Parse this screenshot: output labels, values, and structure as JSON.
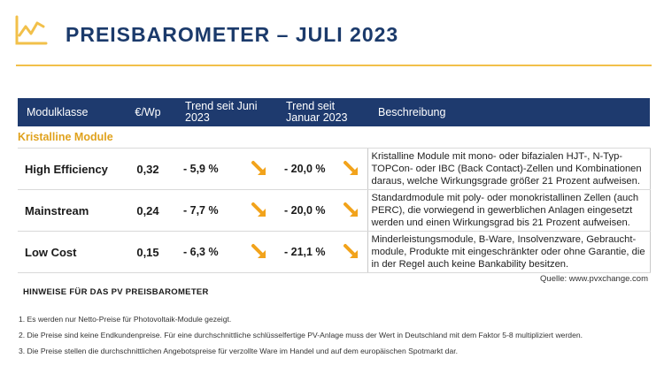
{
  "header": {
    "title": "PREISBAROMETER – JULI 2023",
    "colors": {
      "brand_blue": "#1e3a6e",
      "accent_yellow": "#f2c04a",
      "section_orange": "#e0a21d"
    },
    "logo_icon": "trend-chart-logo-icon"
  },
  "table": {
    "columns": [
      "Modulklasse",
      "€/Wp",
      "Trend seit Juni 2023",
      "Trend seit Januar 2023",
      "Beschreibung"
    ],
    "section": "Kristalline Module",
    "rows": [
      {
        "name": "High Efficiency",
        "price": "0,32",
        "trend_june": "- 5,9 %",
        "trend_jan": "- 20,0 %",
        "description": "Kristalline Module mit mono- oder bifazialen HJT-, N-Typ-TOPCon- oder IBC (Back Contact)-Zellen und Kombinationen daraus, welche Wirkungsgrade größer 21 Prozent aufweisen."
      },
      {
        "name": "Mainstream",
        "price": "0,24",
        "trend_june": "- 7,7 %",
        "trend_jan": "- 20,0 %",
        "description": "Standardmodule mit poly- oder monokristallinen Zellen (auch PERC), die vorwiegend in gewerblichen Anlagen eingesetzt werden und einen Wirkungsgrad bis 21 Prozent aufweisen."
      },
      {
        "name": "Low Cost",
        "price": "0,15",
        "trend_june": "- 6,3 %",
        "trend_jan": "- 21,1 %",
        "description": "Minderleistungsmodule, B-Ware, Insolvenzware, Gebraucht-module, Produkte mit eingeschränkter oder ohne Garantie, die in der Regel auch keine Bankability besitzen."
      }
    ],
    "trend_icon": "down-right-arrow-icon"
  },
  "source": "Quelle: www.pvxchange.com",
  "notes": {
    "title": "HINWEISE FÜR DAS PV PREISBAROMETER",
    "items": [
      "1.  Es werden nur Netto-Preise für Photovoltaik-Module gezeigt.",
      "2. Die Preise sind keine Endkundenpreise. Für eine durchschnittliche schlüsselfertige PV-Anlage muss der Wert in Deutschland mit dem Faktor 5-8 multipliziert werden.",
      "3. Die Preise stellen die durchschnittlichen Angebotspreise für verzollte Ware im Handel und auf dem europäischen Spotmarkt dar."
    ]
  }
}
